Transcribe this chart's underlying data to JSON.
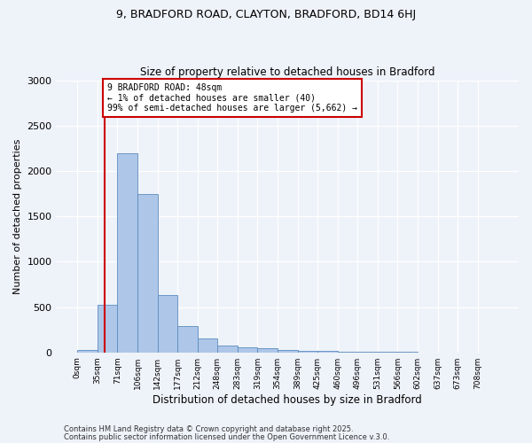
{
  "title_line1": "9, BRADFORD ROAD, CLAYTON, BRADFORD, BD14 6HJ",
  "title_line2": "Size of property relative to detached houses in Bradford",
  "xlabel": "Distribution of detached houses by size in Bradford",
  "ylabel": "Number of detached properties",
  "categories": [
    "0sqm",
    "35sqm",
    "71sqm",
    "106sqm",
    "142sqm",
    "177sqm",
    "212sqm",
    "248sqm",
    "283sqm",
    "319sqm",
    "354sqm",
    "389sqm",
    "425sqm",
    "460sqm",
    "496sqm",
    "531sqm",
    "566sqm",
    "602sqm",
    "637sqm",
    "673sqm",
    "708sqm"
  ],
  "values": [
    30,
    530,
    2200,
    1750,
    630,
    290,
    150,
    80,
    60,
    45,
    30,
    20,
    15,
    10,
    8,
    5,
    3,
    2,
    2,
    1,
    1
  ],
  "bar_color": "#aec6e8",
  "bar_edge_color": "#5b8dc0",
  "bar_width": 1.0,
  "ylim": [
    0,
    3000
  ],
  "yticks": [
    0,
    500,
    1000,
    1500,
    2000,
    2500,
    3000
  ],
  "marker_color": "#cc0000",
  "annotation_title": "9 BRADFORD ROAD: 48sqm",
  "annotation_line1": "← 1% of detached houses are smaller (40)",
  "annotation_line2": "99% of semi-detached houses are larger (5,662) →",
  "annotation_box_color": "#cc0000",
  "footer_line1": "Contains HM Land Registry data © Crown copyright and database right 2025.",
  "footer_line2": "Contains public sector information licensed under the Open Government Licence v.3.0.",
  "bg_color": "#eef2f9"
}
